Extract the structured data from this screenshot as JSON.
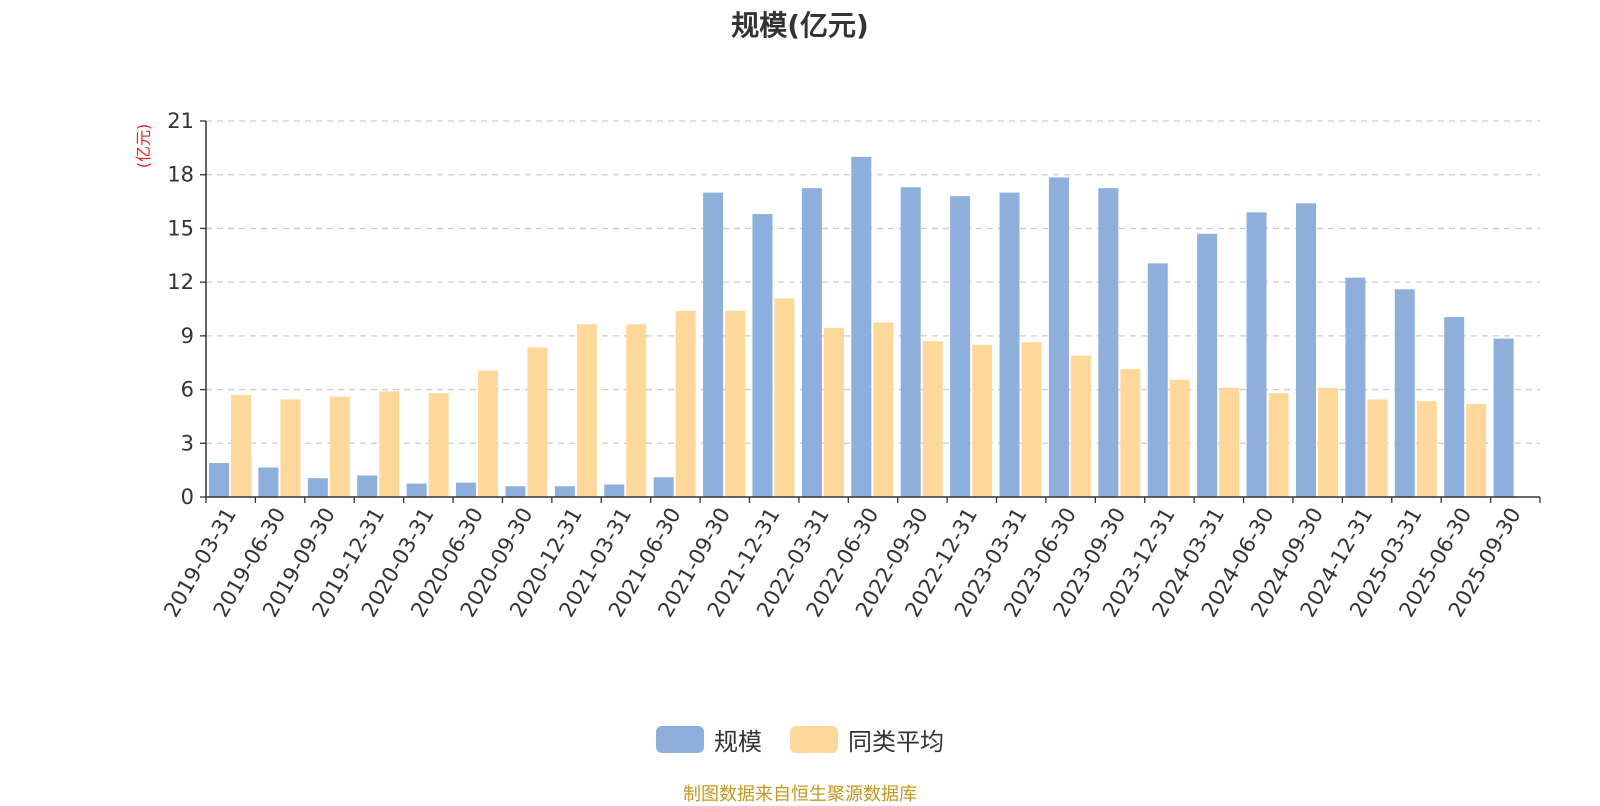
{
  "colors": {
    "scale": "#8eaedc",
    "peer_avg": "#fdd89a",
    "ylabel": "#e8211c",
    "source": "#c8961e",
    "grid": "#cccccc",
    "axis": "#333333"
  },
  "source_note": "制图数据来自恒生聚源数据库",
  "chart_data": {
    "type": "bar",
    "title": "规模(亿元)",
    "ylabel": "(亿元)",
    "xlabel": "",
    "ylim": [
      0,
      21
    ],
    "yticks": [
      0,
      3,
      6,
      9,
      12,
      15,
      18,
      21
    ],
    "grid": true,
    "legend_position": "bottom",
    "categories": [
      "2019-03-31",
      "2019-06-30",
      "2019-09-30",
      "2019-12-31",
      "2020-03-31",
      "2020-06-30",
      "2020-09-30",
      "2020-12-31",
      "2021-03-31",
      "2021-06-30",
      "2021-09-30",
      "2021-12-31",
      "2022-03-31",
      "2022-06-30",
      "2022-09-30",
      "2022-12-31",
      "2023-03-31",
      "2023-06-30",
      "2023-09-30",
      "2023-12-31",
      "2024-03-31",
      "2024-06-30",
      "2024-09-30",
      "2024-12-31",
      "2025-03-31",
      "2025-06-30",
      "2025-09-30"
    ],
    "series": [
      {
        "name": "规模",
        "values": [
          1.9,
          1.65,
          1.05,
          1.2,
          0.75,
          0.8,
          0.6,
          0.6,
          0.7,
          1.1,
          17.0,
          15.8,
          17.25,
          19.0,
          17.3,
          16.8,
          17.0,
          17.85,
          17.25,
          13.05,
          14.7,
          15.9,
          16.4,
          12.25,
          11.6,
          10.05,
          8.85
        ]
      },
      {
        "name": "同类平均",
        "values": [
          5.7,
          5.45,
          5.6,
          5.9,
          5.8,
          7.05,
          8.35,
          9.65,
          9.65,
          10.4,
          10.4,
          11.1,
          9.45,
          9.75,
          8.7,
          8.5,
          8.65,
          7.9,
          7.15,
          6.55,
          6.1,
          5.8,
          6.1,
          5.45,
          5.35,
          5.2,
          null
        ]
      }
    ]
  }
}
